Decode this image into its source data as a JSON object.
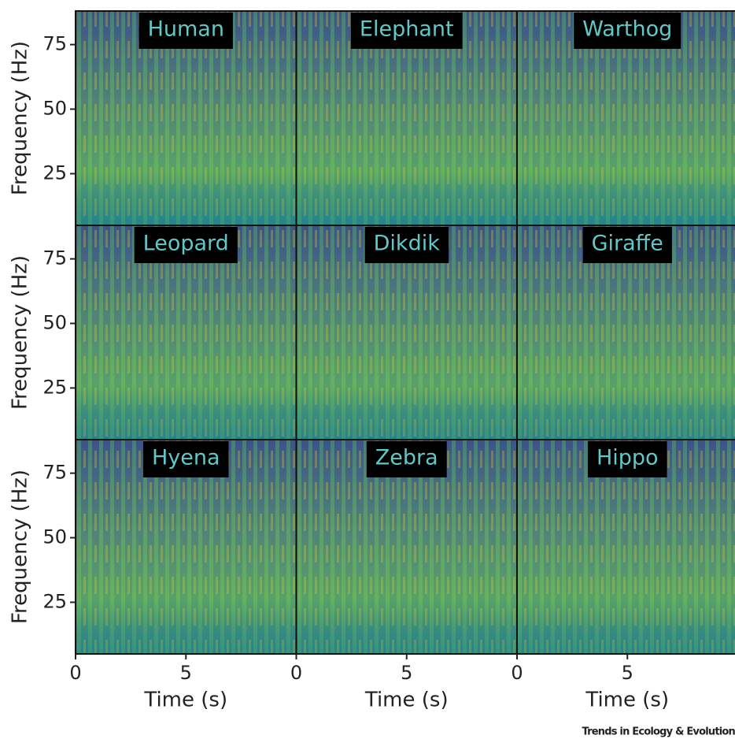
{
  "chart_data": [
    {
      "type": "spectrogram",
      "title": "Human",
      "xlim": [
        0,
        10
      ],
      "ylim": [
        5,
        88
      ],
      "yticks": [
        25,
        50,
        75
      ],
      "ylabel": "Frequency (Hz)"
    },
    {
      "type": "spectrogram",
      "title": "Elephant",
      "xlim": [
        0,
        10
      ],
      "ylim": [
        5,
        88
      ]
    },
    {
      "type": "spectrogram",
      "title": "Warthog",
      "xlim": [
        0,
        10
      ],
      "ylim": [
        5,
        88
      ]
    },
    {
      "type": "spectrogram",
      "title": "Leopard",
      "xlim": [
        0,
        10
      ],
      "ylim": [
        5,
        88
      ],
      "yticks": [
        25,
        50,
        75
      ],
      "ylabel": "Frequency (Hz)"
    },
    {
      "type": "spectrogram",
      "title": "Dikdik",
      "xlim": [
        0,
        10
      ],
      "ylim": [
        5,
        88
      ]
    },
    {
      "type": "spectrogram",
      "title": "Giraffe",
      "xlim": [
        0,
        10
      ],
      "ylim": [
        5,
        88
      ]
    },
    {
      "type": "spectrogram",
      "title": "Hyena",
      "xlim": [
        0,
        10
      ],
      "ylim": [
        5,
        88
      ],
      "yticks": [
        25,
        50,
        75
      ],
      "ylabel": "Frequency (Hz)",
      "xticks": [
        0,
        5
      ],
      "xlabel": "Time (s)"
    },
    {
      "type": "spectrogram",
      "title": "Zebra",
      "xlim": [
        0,
        10
      ],
      "ylim": [
        5,
        88
      ],
      "xticks": [
        0,
        5
      ],
      "xlabel": "Time (s)"
    },
    {
      "type": "spectrogram",
      "title": "Hippo",
      "xlim": [
        0,
        10
      ],
      "ylim": [
        5,
        88
      ],
      "xticks": [
        0,
        5
      ],
      "xlabel": "Time (s)"
    }
  ],
  "source": "Trends in Ecology & Evolution"
}
